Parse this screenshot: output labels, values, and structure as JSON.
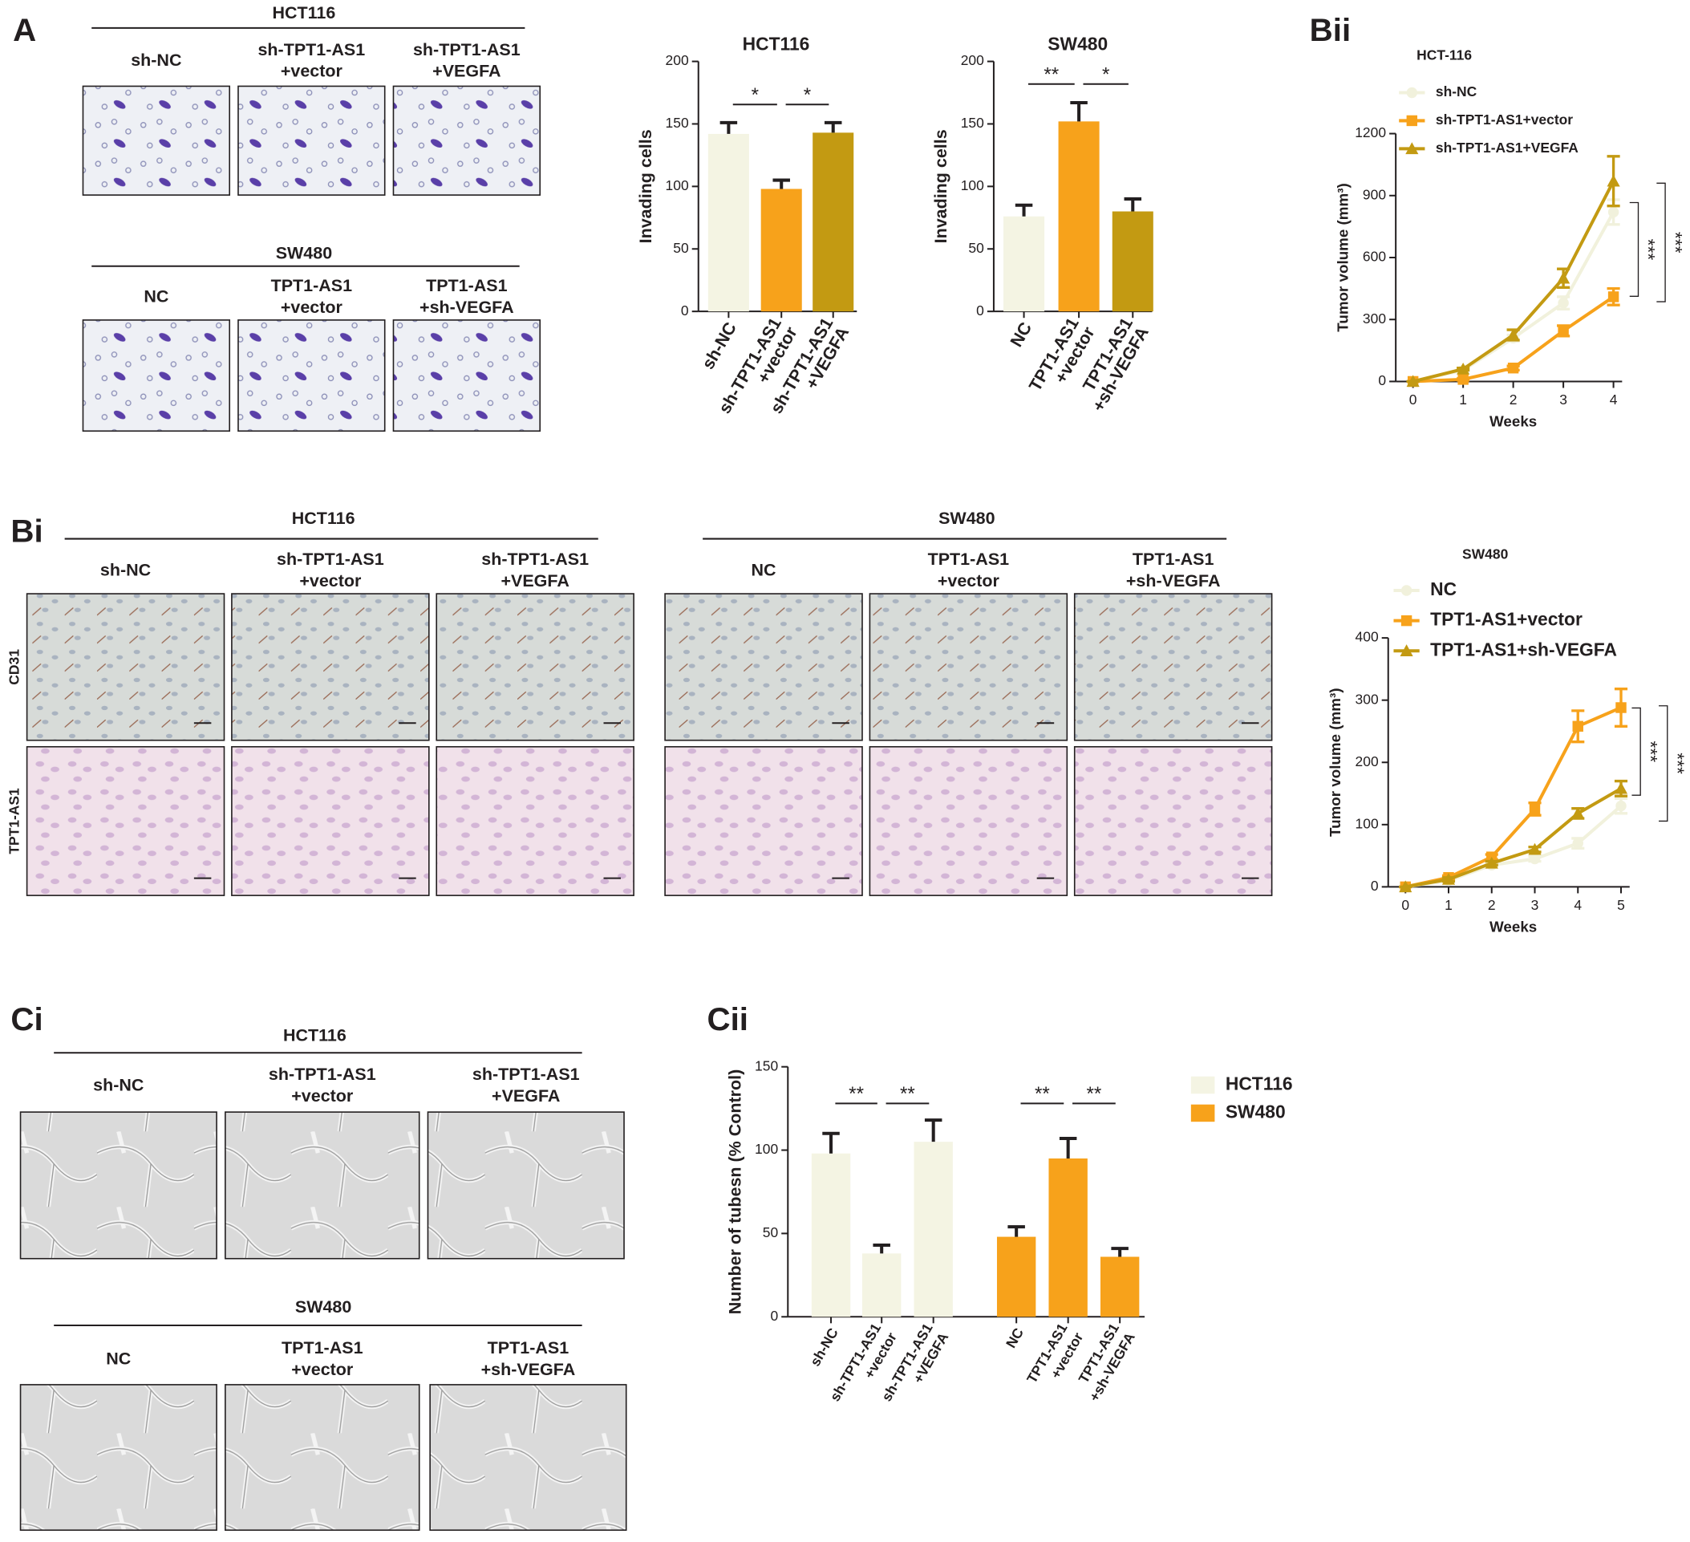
{
  "panel_labels": [
    "A",
    "Bii",
    "Bi",
    "Ci",
    "Cii"
  ],
  "stain_rows": [
    "CD31",
    "TPT1-AS1"
  ],
  "micrographs": [
    {
      "title": "HCT116",
      "groups": [
        [
          "sh-NC"
        ],
        [
          "sh-TPT1-AS1",
          "+vector"
        ],
        [
          "sh-TPT1-AS1",
          "+VEGFA"
        ]
      ]
    },
    {
      "title": "SW480",
      "groups": [
        [
          "NC"
        ],
        [
          "TPT1-AS1",
          "+vector"
        ],
        [
          "TPT1-AS1",
          "+sh-VEGFA"
        ]
      ]
    },
    {
      "title": "HCT116",
      "groups": [
        [
          "sh-NC"
        ],
        [
          "sh-TPT1-AS1",
          "+vector"
        ],
        [
          "sh-TPT1-AS1",
          "+VEGFA"
        ]
      ]
    },
    {
      "title": "SW480",
      "groups": [
        [
          "NC"
        ],
        [
          "TPT1-AS1",
          "+vector"
        ],
        [
          "TPT1-AS1",
          "+sh-VEGFA"
        ]
      ]
    },
    {
      "title": "HCT116",
      "groups": [
        [
          "sh-NC"
        ],
        [
          "sh-TPT1-AS1",
          "+vector"
        ],
        [
          "sh-TPT1-AS1",
          "+VEGFA"
        ]
      ]
    },
    {
      "title": "SW480",
      "groups": [
        [
          "NC"
        ],
        [
          "TPT1-AS1",
          "+vector"
        ],
        [
          "TPT1-AS1",
          "+sh-VEGFA"
        ]
      ]
    }
  ],
  "chart_data": [
    {
      "type": "bar",
      "title": "HCT116",
      "ylabel": "Invading cells",
      "categories": [
        [
          "sh-NC"
        ],
        [
          "sh-TPT1-AS1",
          "+vector"
        ],
        [
          "sh-TPT1-AS1",
          "+VEGFA"
        ]
      ],
      "values": [
        142,
        98,
        143
      ],
      "errors": [
        9,
        7,
        8
      ],
      "colors": [
        "#f4f4e3",
        "#f7a21b",
        "#c39a12"
      ],
      "ylim": [
        0,
        200
      ],
      "yticks": [
        0,
        50,
        100,
        150,
        200
      ],
      "annotations": [
        "*",
        "*"
      ]
    },
    {
      "type": "bar",
      "title": "SW480",
      "ylabel": "Invading cells",
      "categories": [
        [
          "NC"
        ],
        [
          "TPT1-AS1",
          "+vector"
        ],
        [
          "TPT1-AS1",
          "+sh-VEGFA"
        ]
      ],
      "values": [
        76,
        152,
        80
      ],
      "errors": [
        9,
        15,
        10
      ],
      "colors": [
        "#f4f4e3",
        "#f7a21b",
        "#c39a12"
      ],
      "ylim": [
        0,
        200
      ],
      "yticks": [
        0,
        50,
        100,
        150,
        200
      ],
      "annotations": [
        "**",
        "*"
      ]
    },
    {
      "type": "line",
      "title": "HCT-116",
      "xlabel": "Weeks",
      "ylabel": "Tumor volume (mm³)",
      "x": [
        0,
        1,
        2,
        3,
        4
      ],
      "xlim": [
        0,
        4
      ],
      "xticks": [
        0,
        1,
        2,
        3,
        4
      ],
      "ylim": [
        0,
        1200
      ],
      "yticks": [
        0,
        300,
        600,
        900,
        1200
      ],
      "series": [
        {
          "name": "sh-NC",
          "color": "#f1f1dc",
          "marker": "circle",
          "values": [
            0,
            55,
            210,
            380,
            820
          ],
          "errors": [
            0,
            5,
            15,
            30,
            60
          ]
        },
        {
          "name": "sh-TPT1-AS1+vector",
          "color": "#f7a21b",
          "marker": "square",
          "values": [
            0,
            10,
            65,
            245,
            410
          ],
          "errors": [
            0,
            4,
            10,
            25,
            40
          ]
        },
        {
          "name": "sh-TPT1-AS1+VEGFA",
          "color": "#c39a12",
          "marker": "triangle",
          "values": [
            0,
            60,
            225,
            500,
            970
          ],
          "errors": [
            0,
            5,
            25,
            45,
            120
          ]
        }
      ],
      "annotations": [
        "***",
        "***"
      ]
    },
    {
      "type": "line",
      "title": "SW480",
      "xlabel": "Weeks",
      "ylabel": "Tumor volume (mm³)",
      "x": [
        0,
        1,
        2,
        3,
        4,
        5
      ],
      "xlim": [
        0,
        5
      ],
      "xticks": [
        0,
        1,
        2,
        3,
        4,
        5
      ],
      "ylim": [
        0,
        400
      ],
      "yticks": [
        0,
        100,
        200,
        300,
        400
      ],
      "series": [
        {
          "name": "NC",
          "color": "#f1f1dc",
          "marker": "circle",
          "values": [
            0,
            10,
            35,
            45,
            70,
            130
          ],
          "errors": [
            0,
            2,
            3,
            4,
            8,
            12
          ]
        },
        {
          "name": "TPT1-AS1+vector",
          "color": "#f7a21b",
          "marker": "square",
          "values": [
            0,
            15,
            48,
            125,
            258,
            288
          ],
          "errors": [
            0,
            3,
            4,
            10,
            25,
            30
          ]
        },
        {
          "name": "TPT1-AS1+sh-VEGFA",
          "color": "#c39a12",
          "marker": "triangle",
          "values": [
            0,
            12,
            38,
            60,
            118,
            158
          ],
          "errors": [
            0,
            3,
            3,
            4,
            8,
            12
          ]
        }
      ],
      "annotations": [
        "***",
        "***"
      ]
    },
    {
      "type": "bar",
      "ylabel": "Number of tubesn (% Control)",
      "ylim": [
        0,
        150
      ],
      "yticks": [
        0,
        50,
        100,
        150
      ],
      "series": [
        {
          "name": "HCT116",
          "color": "#f4f4e3",
          "categories": [
            [
              "sh-NC"
            ],
            [
              "sh-TPT1-AS1",
              "+vector"
            ],
            [
              "sh-TPT1-AS1",
              "+VEGFA"
            ]
          ],
          "values": [
            98,
            38,
            105
          ],
          "errors": [
            12,
            5,
            13
          ]
        },
        {
          "name": "SW480",
          "color": "#f7a21b",
          "categories": [
            [
              "NC"
            ],
            [
              "TPT1-AS1",
              "+vector"
            ],
            [
              "TPT1-AS1",
              "+sh-VEGFA"
            ]
          ],
          "values": [
            48,
            95,
            36
          ],
          "errors": [
            6,
            12,
            5
          ]
        }
      ],
      "annotations": [
        "**",
        "**",
        "**",
        "**"
      ]
    }
  ]
}
